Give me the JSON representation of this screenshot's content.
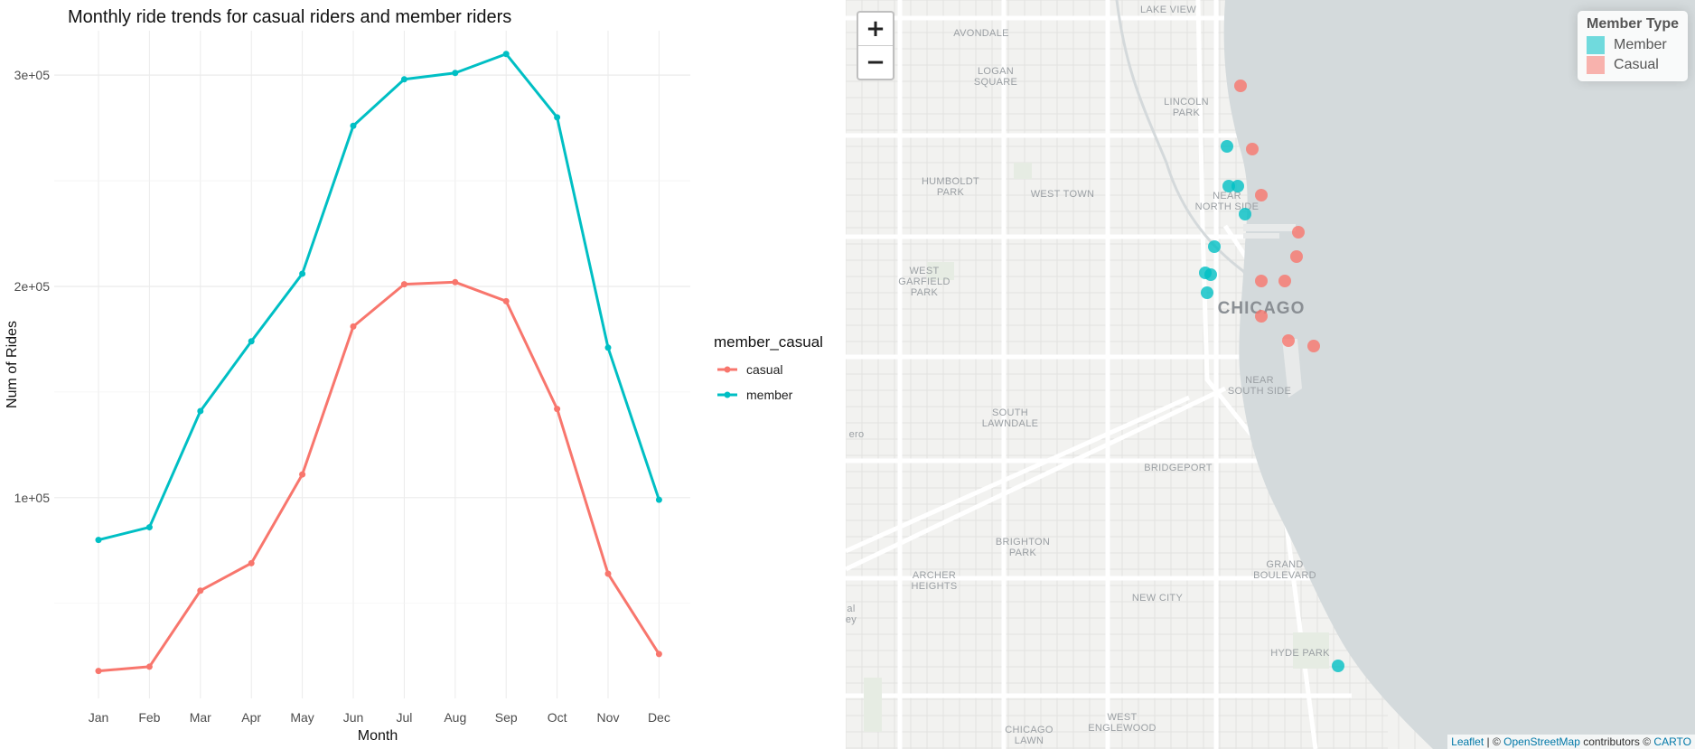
{
  "chart_data": {
    "type": "line",
    "title": "Monthly ride trends for casual riders and member riders",
    "xlabel": "Month",
    "ylabel": "Num of Rides",
    "categories": [
      "Jan",
      "Feb",
      "Mar",
      "Apr",
      "May",
      "Jun",
      "Jul",
      "Aug",
      "Sep",
      "Oct",
      "Nov",
      "Dec"
    ],
    "series": [
      {
        "name": "casual",
        "color": "#f8766d",
        "values": [
          18000,
          20000,
          56000,
          69000,
          111000,
          181000,
          201000,
          202000,
          193000,
          142000,
          64000,
          26000
        ]
      },
      {
        "name": "member",
        "color": "#00bfc4",
        "values": [
          80000,
          86000,
          141000,
          174000,
          206000,
          276000,
          298000,
          301000,
          310000,
          280000,
          171000,
          99000
        ]
      }
    ],
    "yticks": [
      100000,
      200000,
      300000
    ],
    "ytick_labels": [
      "1e+05",
      "2e+05",
      "3e+05"
    ],
    "ylim": [
      5000,
      321000
    ],
    "legend_title": "member_casual",
    "legend_position": "right",
    "grid": true
  },
  "map": {
    "zoom_in_label": "+",
    "zoom_out_label": "−",
    "legend_title": "Member Type",
    "legend_items": [
      {
        "label": "Member",
        "color": "#00bfc4"
      },
      {
        "label": "Casual",
        "color": "#f8766d"
      }
    ],
    "neighborhoods": [
      "LAKE VIEW",
      "AVONDALE",
      "LOGAN\nSQUARE",
      "LINCOLN\nPARK",
      "HUMBOLDT\nPARK",
      "WEST TOWN",
      "NEAR\nNORTH SIDE",
      "WEST\nGARFIELD\nPARK",
      "CHICAGO",
      "NEAR\nSOUTH SIDE",
      "SOUTH\nLAWNDALE",
      "BRIDGEPORT",
      "BRIGHTON\nPARK",
      "ARCHER\nHEIGHTS",
      "NEW CITY",
      "GRAND\nBOULEVARD",
      "HYDE PARK",
      "CHICAGO\nLAWN",
      "WEST\nENGLEWOOD",
      "ero",
      "al\ney"
    ],
    "attribution": {
      "leaflet": "Leaflet",
      "separator": " | © ",
      "osm": "OpenStreetMap",
      "contributors": " contributors © ",
      "carto": "CARTO"
    }
  }
}
